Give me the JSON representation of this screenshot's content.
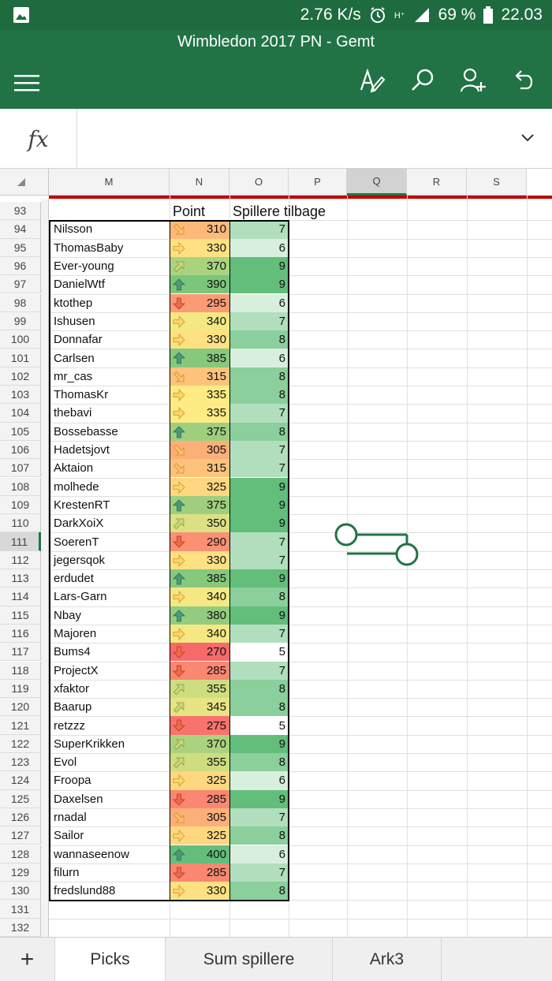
{
  "status_bar": {
    "speed": "2.76 K/s",
    "network": "H⁺",
    "battery": "69 %",
    "time": "22.03"
  },
  "app": {
    "title": "Wimbledon 2017 PN - Gemt"
  },
  "formula_bar": {
    "label": "fx",
    "value": ""
  },
  "columns": [
    "M",
    "N",
    "O",
    "P",
    "Q",
    "R",
    "S"
  ],
  "selected_column": "Q",
  "selected_row": 111,
  "header_row": {
    "row": 93,
    "point_label": "Point",
    "remaining_label": "Spillere tilbage"
  },
  "rows": [
    {
      "row": 94,
      "name": "Nilsson",
      "points": 310,
      "remaining": 7,
      "arrow": "down-right"
    },
    {
      "row": 95,
      "name": "ThomasBaby",
      "points": 330,
      "remaining": 6,
      "arrow": "right"
    },
    {
      "row": 96,
      "name": "Ever-young",
      "points": 370,
      "remaining": 9,
      "arrow": "up-right"
    },
    {
      "row": 97,
      "name": "DanielWtf",
      "points": 390,
      "remaining": 9,
      "arrow": "up"
    },
    {
      "row": 98,
      "name": "ktothep",
      "points": 295,
      "remaining": 6,
      "arrow": "down"
    },
    {
      "row": 99,
      "name": "Ishusen",
      "points": 340,
      "remaining": 7,
      "arrow": "right"
    },
    {
      "row": 100,
      "name": "Donnafar",
      "points": 330,
      "remaining": 8,
      "arrow": "right"
    },
    {
      "row": 101,
      "name": "Carlsen",
      "points": 385,
      "remaining": 6,
      "arrow": "up"
    },
    {
      "row": 102,
      "name": "mr_cas",
      "points": 315,
      "remaining": 8,
      "arrow": "down-right"
    },
    {
      "row": 103,
      "name": "ThomasKr",
      "points": 335,
      "remaining": 8,
      "arrow": "right"
    },
    {
      "row": 104,
      "name": "thebavi",
      "points": 335,
      "remaining": 7,
      "arrow": "right"
    },
    {
      "row": 105,
      "name": "Bossebasse",
      "points": 375,
      "remaining": 8,
      "arrow": "up"
    },
    {
      "row": 106,
      "name": "Hadetsjovt",
      "points": 305,
      "remaining": 7,
      "arrow": "down-right"
    },
    {
      "row": 107,
      "name": "Aktaion",
      "points": 315,
      "remaining": 7,
      "arrow": "down-right"
    },
    {
      "row": 108,
      "name": "molhede",
      "points": 325,
      "remaining": 9,
      "arrow": "right"
    },
    {
      "row": 109,
      "name": "KrestenRT",
      "points": 375,
      "remaining": 9,
      "arrow": "up"
    },
    {
      "row": 110,
      "name": "DarkXoiX",
      "points": 350,
      "remaining": 9,
      "arrow": "up-right"
    },
    {
      "row": 111,
      "name": "SoerenT",
      "points": 290,
      "remaining": 7,
      "arrow": "down"
    },
    {
      "row": 112,
      "name": "jegersqok",
      "points": 330,
      "remaining": 7,
      "arrow": "right"
    },
    {
      "row": 113,
      "name": "erdudet",
      "points": 385,
      "remaining": 9,
      "arrow": "up"
    },
    {
      "row": 114,
      "name": "Lars-Garn",
      "points": 340,
      "remaining": 8,
      "arrow": "right"
    },
    {
      "row": 115,
      "name": "Nbay",
      "points": 380,
      "remaining": 9,
      "arrow": "up"
    },
    {
      "row": 116,
      "name": "Majoren",
      "points": 340,
      "remaining": 7,
      "arrow": "right"
    },
    {
      "row": 117,
      "name": "Bums4",
      "points": 270,
      "remaining": 5,
      "arrow": "down"
    },
    {
      "row": 118,
      "name": "ProjectX",
      "points": 285,
      "remaining": 7,
      "arrow": "down"
    },
    {
      "row": 119,
      "name": "xfaktor",
      "points": 355,
      "remaining": 8,
      "arrow": "up-right"
    },
    {
      "row": 120,
      "name": "Baarup",
      "points": 345,
      "remaining": 8,
      "arrow": "up-right"
    },
    {
      "row": 121,
      "name": "retzzz",
      "points": 275,
      "remaining": 5,
      "arrow": "down"
    },
    {
      "row": 122,
      "name": "SuperKrikken",
      "points": 370,
      "remaining": 9,
      "arrow": "up-right"
    },
    {
      "row": 123,
      "name": "Evol",
      "points": 355,
      "remaining": 8,
      "arrow": "up-right"
    },
    {
      "row": 124,
      "name": "Froopa",
      "points": 325,
      "remaining": 6,
      "arrow": "right"
    },
    {
      "row": 125,
      "name": "Daxelsen",
      "points": 285,
      "remaining": 9,
      "arrow": "down"
    },
    {
      "row": 126,
      "name": "rnadal",
      "points": 305,
      "remaining": 7,
      "arrow": "down-right"
    },
    {
      "row": 127,
      "name": "Sailor",
      "points": 325,
      "remaining": 8,
      "arrow": "right"
    },
    {
      "row": 128,
      "name": "wannaseenow",
      "points": 400,
      "remaining": 6,
      "arrow": "up"
    },
    {
      "row": 129,
      "name": "filurn",
      "points": 285,
      "remaining": 7,
      "arrow": "down"
    },
    {
      "row": 130,
      "name": "fredslund88",
      "points": 330,
      "remaining": 8,
      "arrow": "right"
    }
  ],
  "trailing_rows": [
    131,
    132
  ],
  "tabs": {
    "add_label": "+",
    "sheets": [
      {
        "label": "Picks",
        "active": true
      },
      {
        "label": "Sum spillere",
        "active": false
      },
      {
        "label": "Ark3",
        "active": false
      }
    ]
  },
  "colors": {
    "excel_green": "#217346",
    "status_green": "#1e6b3f",
    "scale_low": "#f8696b",
    "scale_mid": "#ffeb84",
    "scale_high": "#63be7b",
    "freeze_line": "#c00000"
  }
}
